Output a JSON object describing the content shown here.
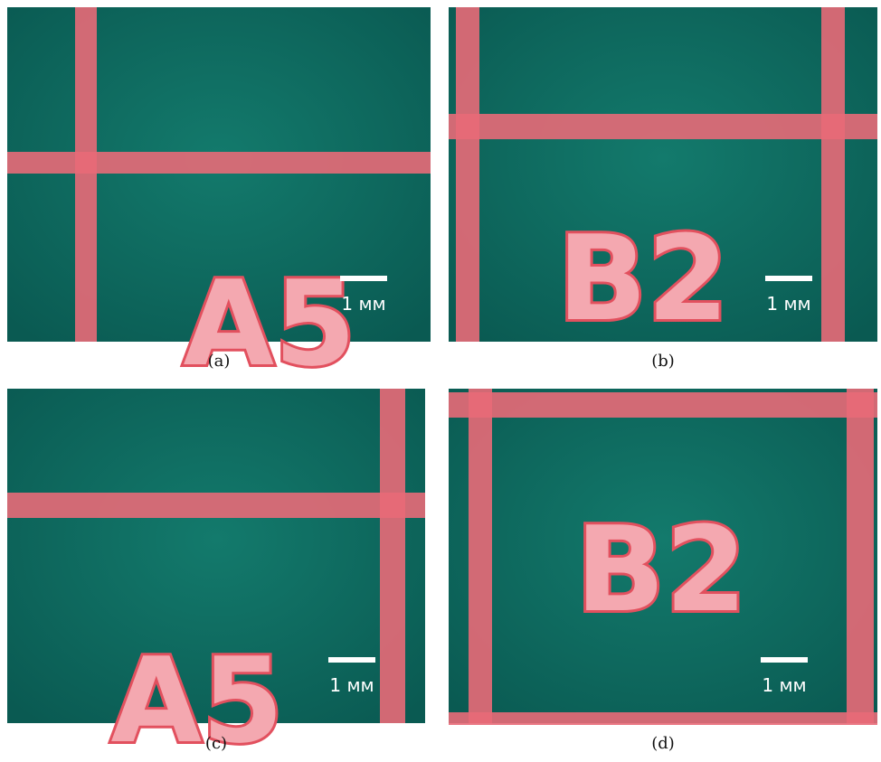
{
  "panels": [
    {
      "caption": "(a)",
      "label": "A5",
      "scale_bar": "1 мм"
    },
    {
      "caption": "(b)",
      "label": "B2",
      "scale_bar": "1 мм"
    },
    {
      "caption": "(c)",
      "label": "A5",
      "scale_bar": "1 мм"
    },
    {
      "caption": "(d)",
      "label": "B2",
      "scale_bar": "1 мм"
    }
  ]
}
